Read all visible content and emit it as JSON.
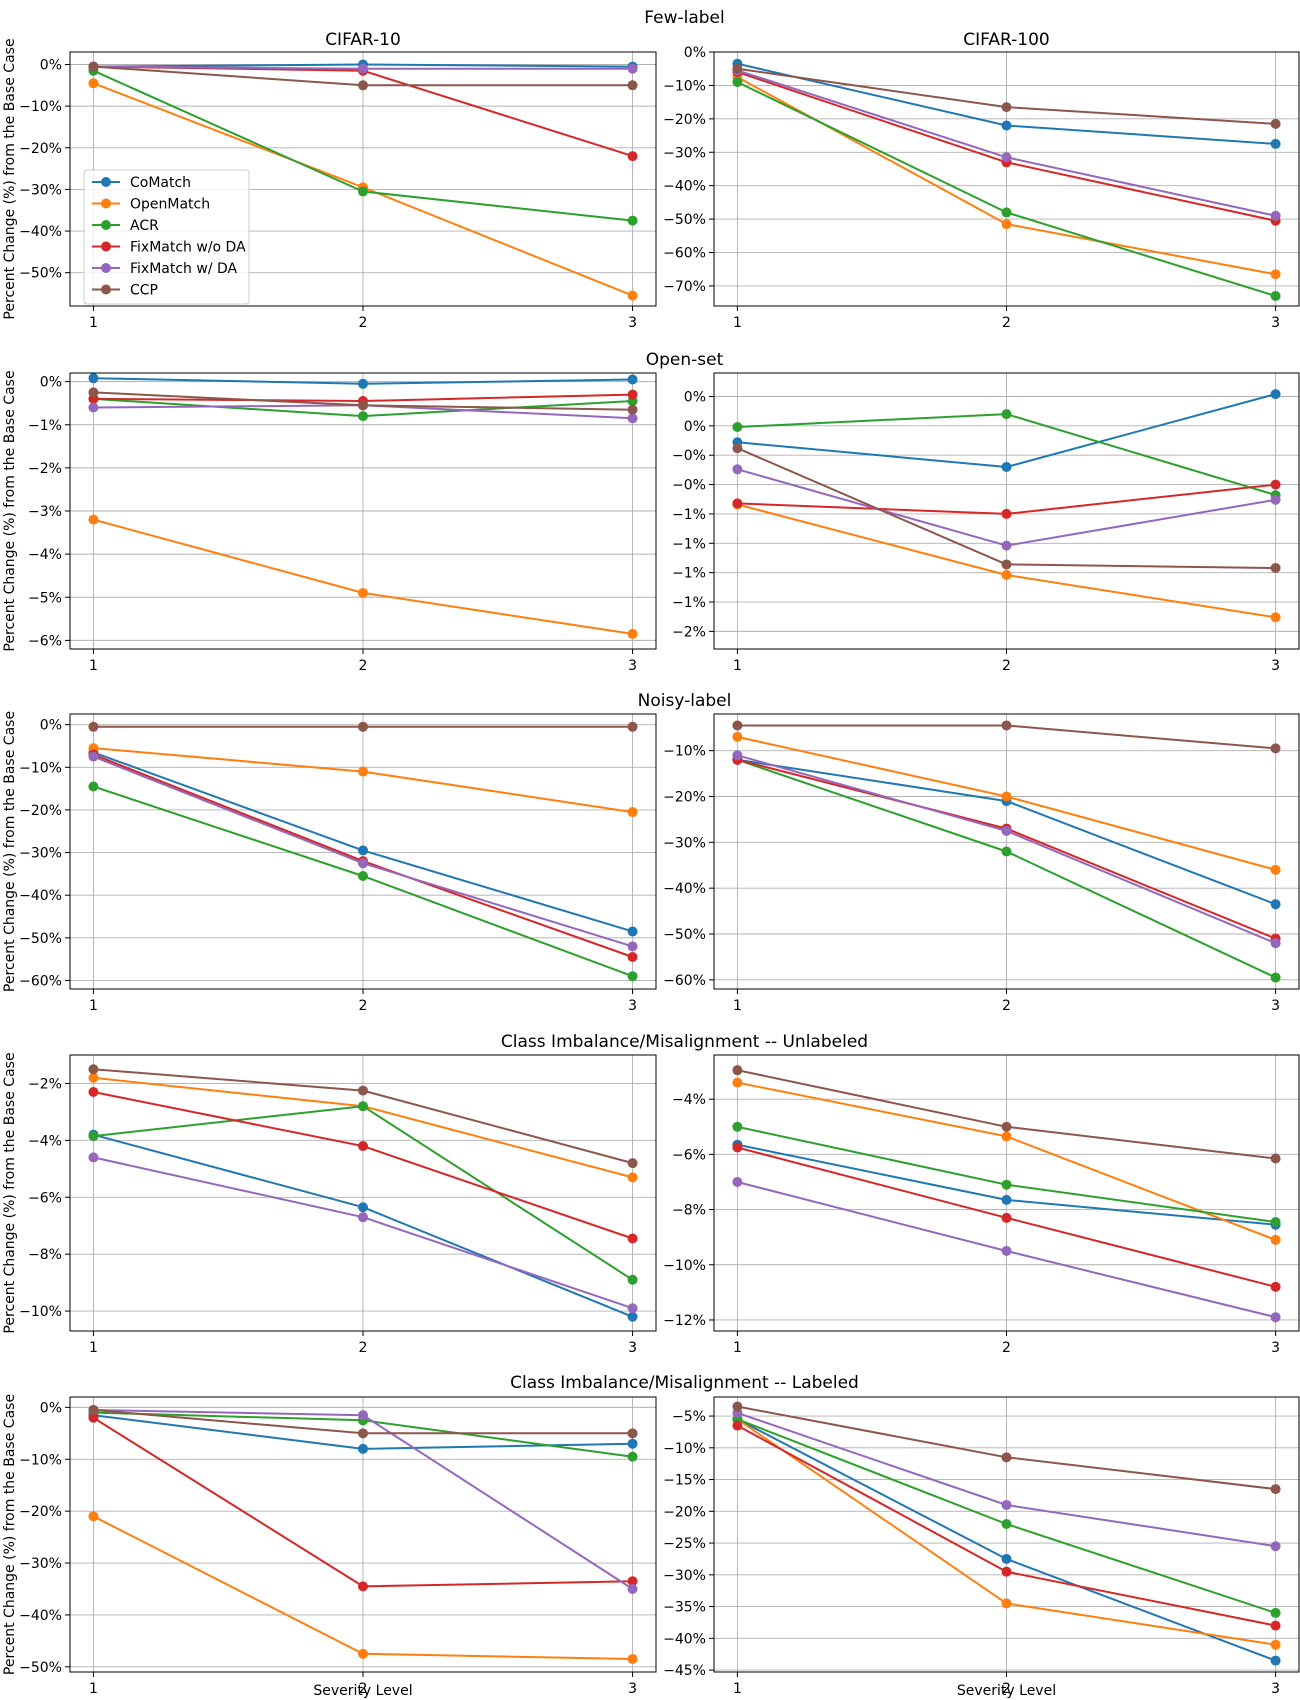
{
  "figure": {
    "row_titles": [
      "Few-label",
      "Open-set",
      "Noisy-label",
      "Class Imbalance/Misalignment -- Unlabeled",
      "Class Imbalance/Misalignment -- Labeled"
    ],
    "column_titles": [
      "CIFAR-10",
      "CIFAR-100"
    ],
    "ylabel": "Percent Change (%) from the Base Case",
    "xlabel": "Severity Level"
  },
  "legend": {
    "location": "center-left of first panel",
    "entries": [
      {
        "name": "CoMatch",
        "color": "#1f77b4"
      },
      {
        "name": "OpenMatch",
        "color": "#ff7f0e"
      },
      {
        "name": "ACR",
        "color": "#2ca02c"
      },
      {
        "name": "FixMatch w/o DA",
        "color": "#d62728"
      },
      {
        "name": "FixMatch w/ DA",
        "color": "#9467bd"
      },
      {
        "name": "CCP",
        "color": "#8c564b"
      }
    ]
  },
  "chart_data": [
    {
      "type": "line",
      "row_title": "Few-label",
      "dataset": "CIFAR-10",
      "x": [
        1,
        2,
        3
      ],
      "xticks": [
        "1",
        "2",
        "3"
      ],
      "ylim": [
        -58,
        3
      ],
      "yticks": [
        {
          "v": 0,
          "label": "0%"
        },
        {
          "v": -10,
          "label": "−10%"
        },
        {
          "v": -20,
          "label": "−20%"
        },
        {
          "v": -30,
          "label": "−30%"
        },
        {
          "v": -40,
          "label": "−40%"
        },
        {
          "v": -50,
          "label": "−50%"
        }
      ],
      "series": [
        {
          "name": "CoMatch",
          "values": [
            -0.5,
            0.0,
            -0.5
          ]
        },
        {
          "name": "OpenMatch",
          "values": [
            -4.5,
            -29.5,
            -55.5
          ]
        },
        {
          "name": "ACR",
          "values": [
            -1.5,
            -30.5,
            -37.5
          ]
        },
        {
          "name": "FixMatch w/o DA",
          "values": [
            -0.5,
            -1.5,
            -22.0
          ]
        },
        {
          "name": "FixMatch w/ DA",
          "values": [
            -0.5,
            -1.0,
            -1.0
          ]
        },
        {
          "name": "CCP",
          "values": [
            -0.5,
            -5.0,
            -5.0
          ]
        }
      ]
    },
    {
      "type": "line",
      "row_title": "Few-label",
      "dataset": "CIFAR-100",
      "x": [
        1,
        2,
        3
      ],
      "xticks": [
        "1",
        "2",
        "3"
      ],
      "ylim": [
        -76,
        0
      ],
      "yticks": [
        {
          "v": 0,
          "label": "0%"
        },
        {
          "v": -10,
          "label": "−10%"
        },
        {
          "v": -20,
          "label": "−20%"
        },
        {
          "v": -30,
          "label": "−30%"
        },
        {
          "v": -40,
          "label": "−40%"
        },
        {
          "v": -50,
          "label": "−50%"
        },
        {
          "v": -60,
          "label": "−60%"
        },
        {
          "v": -70,
          "label": "−70%"
        }
      ],
      "series": [
        {
          "name": "CoMatch",
          "values": [
            -3.5,
            -22.0,
            -27.5
          ]
        },
        {
          "name": "OpenMatch",
          "values": [
            -7.5,
            -51.5,
            -66.5
          ]
        },
        {
          "name": "ACR",
          "values": [
            -9.0,
            -48.0,
            -73.0
          ]
        },
        {
          "name": "FixMatch w/o DA",
          "values": [
            -6.0,
            -33.0,
            -50.5
          ]
        },
        {
          "name": "FixMatch w/ DA",
          "values": [
            -5.5,
            -31.5,
            -49.0
          ]
        },
        {
          "name": "CCP",
          "values": [
            -5.0,
            -16.5,
            -21.5
          ]
        }
      ]
    },
    {
      "type": "line",
      "row_title": "Open-set",
      "dataset": "CIFAR-10",
      "x": [
        1,
        2,
        3
      ],
      "xticks": [
        "1",
        "2",
        "3"
      ],
      "ylim": [
        -6.2,
        0.2
      ],
      "yticks": [
        {
          "v": 0,
          "label": "0%"
        },
        {
          "v": -1,
          "label": "−1%"
        },
        {
          "v": -2,
          "label": "−2%"
        },
        {
          "v": -3,
          "label": "−3%"
        },
        {
          "v": -4,
          "label": "−4%"
        },
        {
          "v": -5,
          "label": "−5%"
        },
        {
          "v": -6,
          "label": "−6%"
        }
      ],
      "series": [
        {
          "name": "CoMatch",
          "values": [
            0.08,
            -0.05,
            0.05
          ]
        },
        {
          "name": "OpenMatch",
          "values": [
            -3.2,
            -4.9,
            -5.85
          ]
        },
        {
          "name": "ACR",
          "values": [
            -0.4,
            -0.8,
            -0.45
          ]
        },
        {
          "name": "FixMatch w/o DA",
          "values": [
            -0.4,
            -0.45,
            -0.3
          ]
        },
        {
          "name": "FixMatch w/ DA",
          "values": [
            -0.6,
            -0.55,
            -0.85
          ]
        },
        {
          "name": "CCP",
          "values": [
            -0.25,
            -0.55,
            -0.65
          ]
        }
      ]
    },
    {
      "type": "line",
      "row_title": "Open-set",
      "dataset": "CIFAR-100",
      "x": [
        1,
        2,
        3
      ],
      "xticks": [
        "1",
        "2",
        "3"
      ],
      "ylim": [
        -2.15,
        0.2
      ],
      "ytick_note": "tick labels rounded to whole percent",
      "yticks": [
        {
          "v": 0,
          "label": "0%"
        },
        {
          "v": -0.25,
          "label": "0%"
        },
        {
          "v": -0.5,
          "label": "−0%"
        },
        {
          "v": -0.75,
          "label": "−0%"
        },
        {
          "v": -1.0,
          "label": "−1%"
        },
        {
          "v": -1.25,
          "label": "−1%"
        },
        {
          "v": -1.5,
          "label": "−1%"
        },
        {
          "v": -1.75,
          "label": "−1%"
        },
        {
          "v": -2.0,
          "label": "−2%"
        }
      ],
      "series": [
        {
          "name": "CoMatch",
          "values": [
            -0.39,
            -0.6,
            0.02
          ]
        },
        {
          "name": "OpenMatch",
          "values": [
            -0.92,
            -1.52,
            -1.88
          ]
        },
        {
          "name": "ACR",
          "values": [
            -0.26,
            -0.15,
            -0.84
          ]
        },
        {
          "name": "FixMatch w/o DA",
          "values": [
            -0.91,
            -1.0,
            -0.75
          ]
        },
        {
          "name": "FixMatch w/ DA",
          "values": [
            -0.62,
            -1.27,
            -0.88
          ]
        },
        {
          "name": "CCP",
          "values": [
            -0.44,
            -1.43,
            -1.46
          ]
        }
      ]
    },
    {
      "type": "line",
      "row_title": "Noisy-label",
      "dataset": "CIFAR-10",
      "x": [
        1,
        2,
        3
      ],
      "xticks": [
        "1",
        "2",
        "3"
      ],
      "ylim": [
        -62,
        2.5
      ],
      "yticks": [
        {
          "v": 0,
          "label": "0%"
        },
        {
          "v": -10,
          "label": "−10%"
        },
        {
          "v": -20,
          "label": "−20%"
        },
        {
          "v": -30,
          "label": "−30%"
        },
        {
          "v": -40,
          "label": "−40%"
        },
        {
          "v": -50,
          "label": "−50%"
        },
        {
          "v": -60,
          "label": "−60%"
        }
      ],
      "series": [
        {
          "name": "CoMatch",
          "values": [
            -6.5,
            -29.5,
            -48.5
          ]
        },
        {
          "name": "OpenMatch",
          "values": [
            -5.5,
            -11.0,
            -20.5
          ]
        },
        {
          "name": "ACR",
          "values": [
            -14.5,
            -35.5,
            -59.0
          ]
        },
        {
          "name": "FixMatch w/o DA",
          "values": [
            -7.0,
            -32.0,
            -54.5
          ]
        },
        {
          "name": "FixMatch w/ DA",
          "values": [
            -7.5,
            -32.5,
            -52.0
          ]
        },
        {
          "name": "CCP",
          "values": [
            -0.5,
            -0.5,
            -0.5
          ]
        }
      ]
    },
    {
      "type": "line",
      "row_title": "Noisy-label",
      "dataset": "CIFAR-100",
      "x": [
        1,
        2,
        3
      ],
      "xticks": [
        "1",
        "2",
        "3"
      ],
      "ylim": [
        -62,
        -2
      ],
      "yticks": [
        {
          "v": -10,
          "label": "−10%"
        },
        {
          "v": -20,
          "label": "−20%"
        },
        {
          "v": -30,
          "label": "−30%"
        },
        {
          "v": -40,
          "label": "−40%"
        },
        {
          "v": -50,
          "label": "−50%"
        },
        {
          "v": -60,
          "label": "−60%"
        }
      ],
      "series": [
        {
          "name": "CoMatch",
          "values": [
            -12.0,
            -21.0,
            -43.5
          ]
        },
        {
          "name": "OpenMatch",
          "values": [
            -7.0,
            -20.0,
            -36.0
          ]
        },
        {
          "name": "ACR",
          "values": [
            -12.0,
            -32.0,
            -59.5
          ]
        },
        {
          "name": "FixMatch w/o DA",
          "values": [
            -12.0,
            -27.0,
            -51.0
          ]
        },
        {
          "name": "FixMatch w/ DA",
          "values": [
            -11.0,
            -27.5,
            -52.0
          ]
        },
        {
          "name": "CCP",
          "values": [
            -4.5,
            -4.5,
            -9.5
          ]
        }
      ]
    },
    {
      "type": "line",
      "row_title": "Class Imbalance/Misalignment -- Unlabeled",
      "dataset": "CIFAR-10",
      "x": [
        1,
        2,
        3
      ],
      "xticks": [
        "1",
        "2",
        "3"
      ],
      "ylim": [
        -10.7,
        -1.0
      ],
      "yticks": [
        {
          "v": -2,
          "label": "−2%"
        },
        {
          "v": -4,
          "label": "−4%"
        },
        {
          "v": -6,
          "label": "−6%"
        },
        {
          "v": -8,
          "label": "−8%"
        },
        {
          "v": -10,
          "label": "−10%"
        }
      ],
      "series": [
        {
          "name": "CoMatch",
          "values": [
            -3.8,
            -6.35,
            -10.2
          ]
        },
        {
          "name": "OpenMatch",
          "values": [
            -1.8,
            -2.8,
            -5.3
          ]
        },
        {
          "name": "ACR",
          "values": [
            -3.85,
            -2.8,
            -8.9
          ]
        },
        {
          "name": "FixMatch w/o DA",
          "values": [
            -2.3,
            -4.2,
            -7.45
          ]
        },
        {
          "name": "FixMatch w/ DA",
          "values": [
            -4.6,
            -6.7,
            -9.9
          ]
        },
        {
          "name": "CCP",
          "values": [
            -1.5,
            -2.25,
            -4.8
          ]
        }
      ]
    },
    {
      "type": "line",
      "row_title": "Class Imbalance/Misalignment -- Unlabeled",
      "dataset": "CIFAR-100",
      "x": [
        1,
        2,
        3
      ],
      "xticks": [
        "1",
        "2",
        "3"
      ],
      "ylim": [
        -12.4,
        -2.4
      ],
      "yticks": [
        {
          "v": -4,
          "label": "−4%"
        },
        {
          "v": -6,
          "label": "−6%"
        },
        {
          "v": -8,
          "label": "−8%"
        },
        {
          "v": -10,
          "label": "−10%"
        },
        {
          "v": -12,
          "label": "−12%"
        }
      ],
      "series": [
        {
          "name": "CoMatch",
          "values": [
            -5.65,
            -7.65,
            -8.55
          ]
        },
        {
          "name": "OpenMatch",
          "values": [
            -3.4,
            -5.35,
            -9.1
          ]
        },
        {
          "name": "ACR",
          "values": [
            -5.0,
            -7.1,
            -8.45
          ]
        },
        {
          "name": "FixMatch w/o DA",
          "values": [
            -5.75,
            -8.3,
            -10.8
          ]
        },
        {
          "name": "FixMatch w/ DA",
          "values": [
            -7.0,
            -9.5,
            -11.9
          ]
        },
        {
          "name": "CCP",
          "values": [
            -2.95,
            -5.0,
            -6.15
          ]
        }
      ]
    },
    {
      "type": "line",
      "row_title": "Class Imbalance/Misalignment -- Labeled",
      "dataset": "CIFAR-10",
      "x": [
        1,
        2,
        3
      ],
      "xticks": [
        "1",
        "2",
        "3"
      ],
      "ylim": [
        -51,
        2
      ],
      "yticks": [
        {
          "v": 0,
          "label": "0%"
        },
        {
          "v": -10,
          "label": "−10%"
        },
        {
          "v": -20,
          "label": "−20%"
        },
        {
          "v": -30,
          "label": "−30%"
        },
        {
          "v": -40,
          "label": "−40%"
        },
        {
          "v": -50,
          "label": "−50%"
        }
      ],
      "series": [
        {
          "name": "CoMatch",
          "values": [
            -1.5,
            -8.0,
            -7.0
          ]
        },
        {
          "name": "OpenMatch",
          "values": [
            -21.0,
            -47.5,
            -48.5
          ]
        },
        {
          "name": "ACR",
          "values": [
            -1.0,
            -2.5,
            -9.5
          ]
        },
        {
          "name": "FixMatch w/o DA",
          "values": [
            -2.0,
            -34.5,
            -33.5
          ]
        },
        {
          "name": "FixMatch w/ DA",
          "values": [
            -0.5,
            -1.5,
            -35.0
          ]
        },
        {
          "name": "CCP",
          "values": [
            -0.5,
            -5.0,
            -5.0
          ]
        }
      ]
    },
    {
      "type": "line",
      "row_title": "Class Imbalance/Misalignment -- Labeled",
      "dataset": "CIFAR-100",
      "x": [
        1,
        2,
        3
      ],
      "xticks": [
        "1",
        "2",
        "3"
      ],
      "ylim": [
        -45.3,
        -2
      ],
      "yticks": [
        {
          "v": -5,
          "label": "−5%"
        },
        {
          "v": -10,
          "label": "−10%"
        },
        {
          "v": -15,
          "label": "−15%"
        },
        {
          "v": -20,
          "label": "−20%"
        },
        {
          "v": -25,
          "label": "−25%"
        },
        {
          "v": -30,
          "label": "−30%"
        },
        {
          "v": -35,
          "label": "−35%"
        },
        {
          "v": -40,
          "label": "−40%"
        },
        {
          "v": -45,
          "label": "−45%"
        }
      ],
      "series": [
        {
          "name": "CoMatch",
          "values": [
            -5.5,
            -27.5,
            -43.5
          ]
        },
        {
          "name": "OpenMatch",
          "values": [
            -5.5,
            -34.5,
            -41.0
          ]
        },
        {
          "name": "ACR",
          "values": [
            -5.5,
            -22.0,
            -36.0
          ]
        },
        {
          "name": "FixMatch w/o DA",
          "values": [
            -6.5,
            -29.5,
            -38.0
          ]
        },
        {
          "name": "FixMatch w/ DA",
          "values": [
            -4.5,
            -19.0,
            -25.5
          ]
        },
        {
          "name": "CCP",
          "values": [
            -3.5,
            -11.5,
            -16.5
          ]
        }
      ]
    }
  ]
}
